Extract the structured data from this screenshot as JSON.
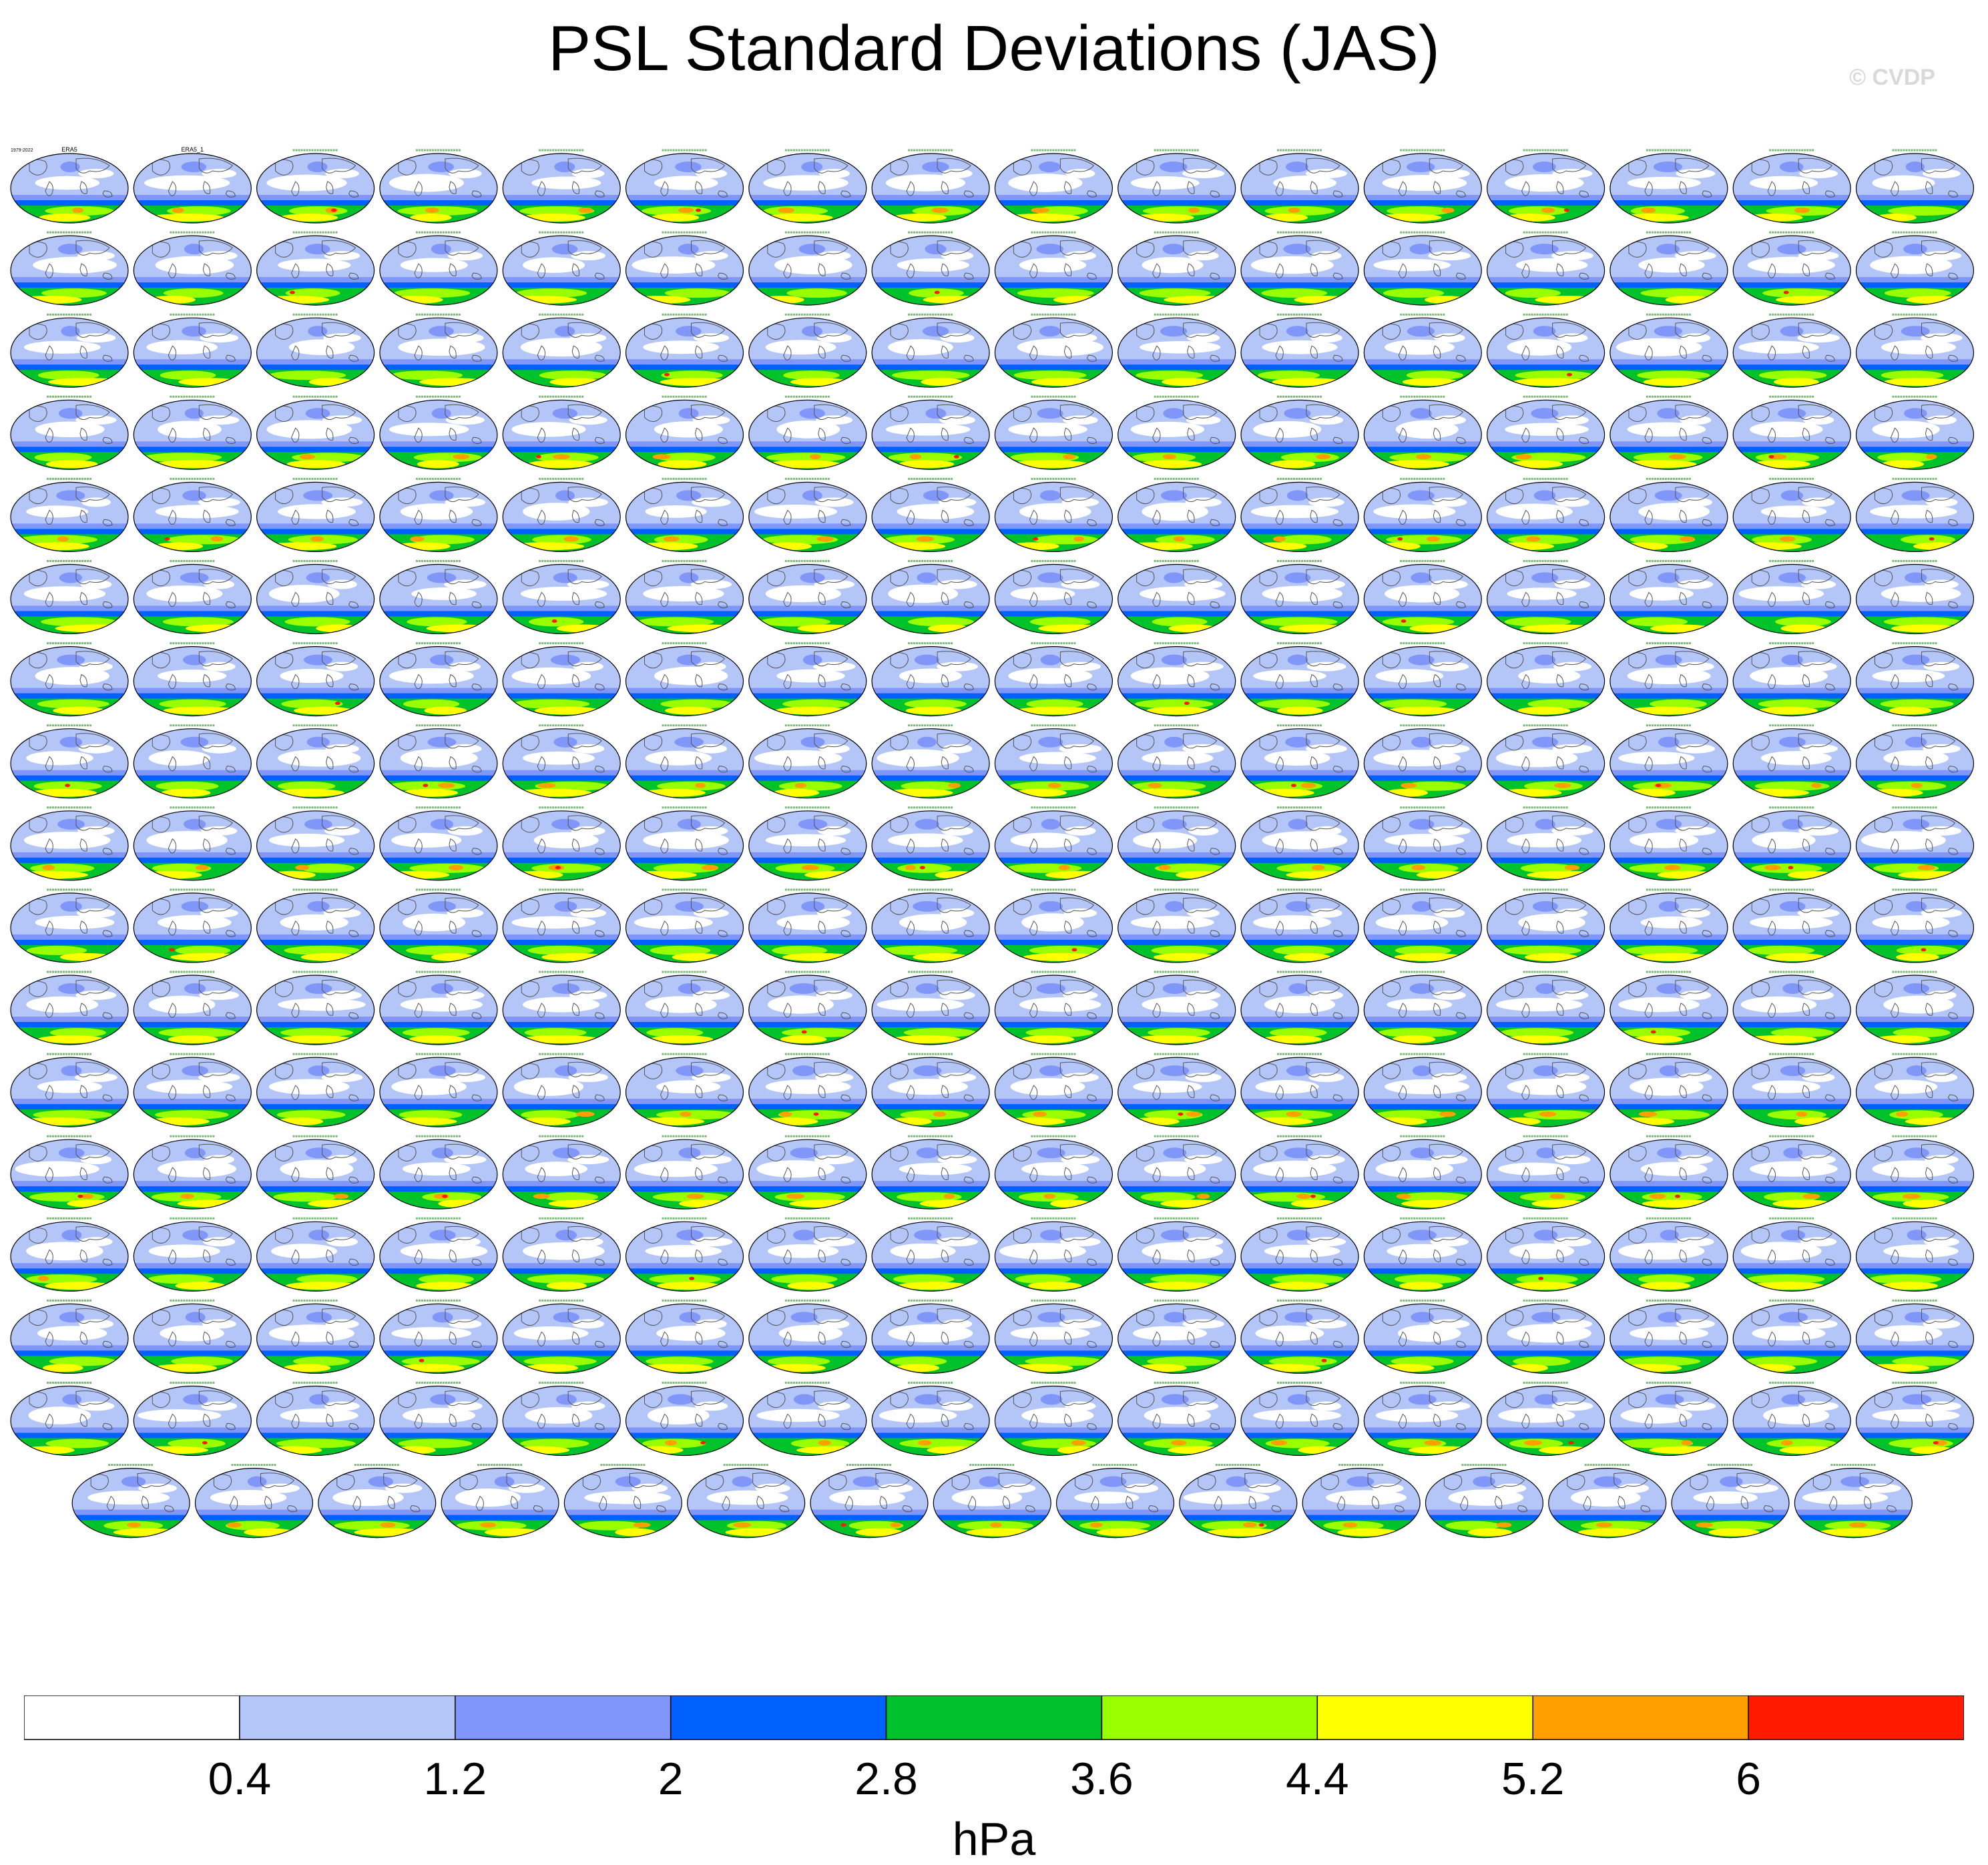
{
  "title": "PSL Standard Deviations (JAS)",
  "watermark": "© CVDP",
  "colorbar": {
    "colors": [
      "#ffffff",
      "#b4c6f8",
      "#8096f8",
      "#0061ff",
      "#00c22b",
      "#99ff00",
      "#ffff00",
      "#ff9f00",
      "#ff1a00"
    ],
    "tick_labels": [
      "0.4",
      "1.2",
      "2",
      "2.8",
      "3.6",
      "4.4",
      "5.2",
      "6"
    ],
    "unit": "hPa"
  },
  "chart_data": {
    "type": "heatmap",
    "title": "PSL Standard Deviations (JAS)",
    "variable": "PSL",
    "season": "JAS",
    "unit": "hPa",
    "contour_levels": [
      0.4,
      1.2,
      2,
      2.8,
      3.6,
      4.4,
      5.2,
      6
    ],
    "panel_grid": {
      "rows": 17,
      "columns": 16,
      "last_row_panels": 15
    },
    "panel_count": 271,
    "panel_titles_legible": [
      "ERA5",
      "ERA5_1"
    ],
    "model_families_visible": [
      "ACCESS-ESM1-5",
      "CanESM5",
      "CESM1",
      "CESM2"
    ],
    "panel_period_legible": "1979-2022"
  }
}
